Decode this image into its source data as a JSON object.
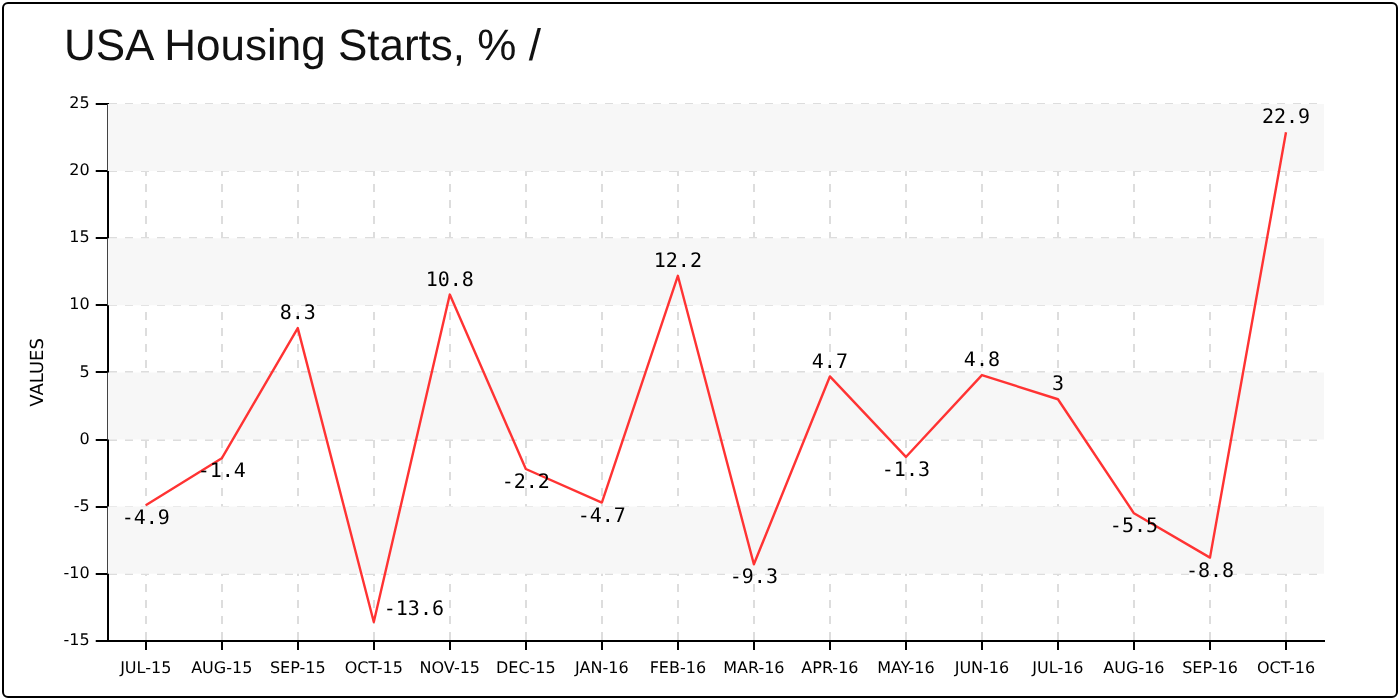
{
  "chart_data": {
    "type": "line",
    "title": "USA Housing Starts, % /",
    "ylabel": "VALUES",
    "categories": [
      "JUL-15",
      "AUG-15",
      "SEP-15",
      "OCT-15",
      "NOV-15",
      "DEC-15",
      "JAN-16",
      "FEB-16",
      "MAR-16",
      "APR-16",
      "MAY-16",
      "JUN-16",
      "JUL-16",
      "AUG-16",
      "SEP-16",
      "OCT-16"
    ],
    "series": [
      {
        "color": "#ff3333",
        "values": [
          -4.9,
          -1.4,
          8.3,
          -13.6,
          10.8,
          -2.2,
          -4.7,
          12.2,
          -9.3,
          4.7,
          -1.3,
          4.8,
          3,
          -5.5,
          -8.8,
          22.9
        ]
      }
    ],
    "ylim": [
      -15,
      25
    ],
    "yticks": [
      -15,
      -10,
      -5,
      0,
      5,
      10,
      15,
      20,
      25
    ],
    "grid": true,
    "data_labels": true,
    "marker": "none",
    "legend": false
  }
}
